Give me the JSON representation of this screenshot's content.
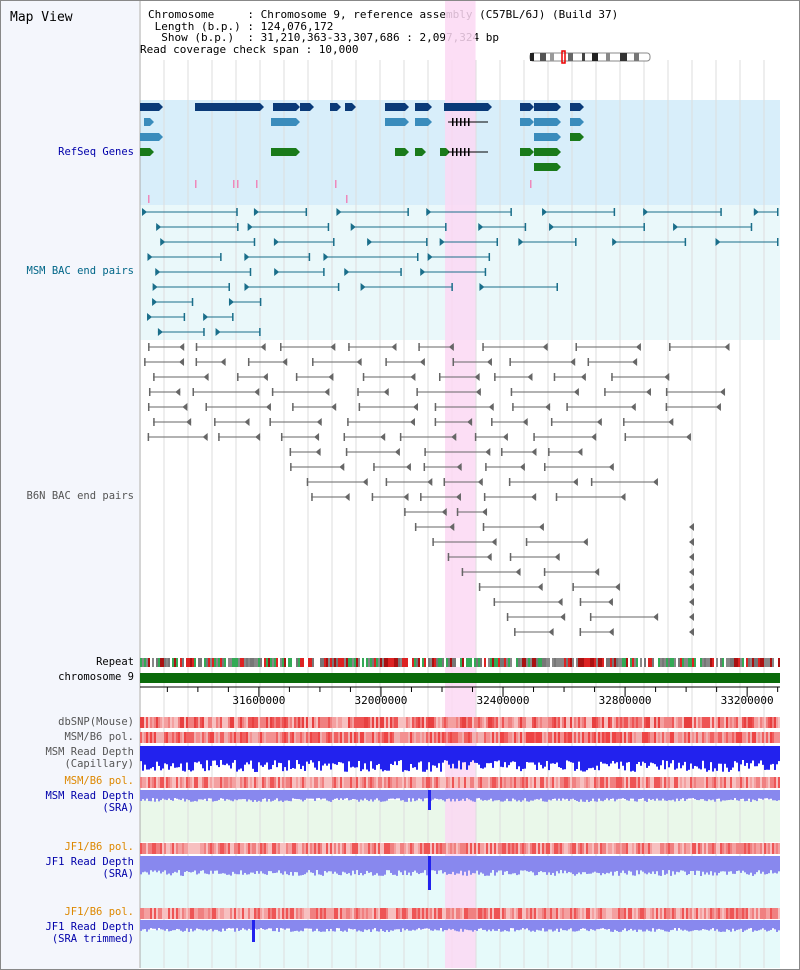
{
  "header": {
    "title": "Map View",
    "info_lines": [
      "Chromosome     : Chromosome 9, reference assembly (C57BL/6J) (Build 37)",
      " Length (b.p.) : 124,076,172",
      "  Show (b.p.)  : 31,210,363-33,307,686 : 2,097,324 bp",
      "Read coverage check span : 10,000"
    ]
  },
  "view": {
    "start": 31210363,
    "end": 33307686,
    "highlight_start": 32210000,
    "highlight_end": 32310000
  },
  "tracks": {
    "refseq": {
      "label": "RefSeq Genes",
      "color": "#0000aa"
    },
    "msm_bac": {
      "label": "MSM BAC end pairs",
      "color": "#006688"
    },
    "b6n_bac": {
      "label": "B6N BAC end pairs",
      "color": "#555555"
    },
    "repeat": {
      "label": "Repeat",
      "color": "#000000"
    },
    "chromosome": {
      "label": "chromosome 9",
      "color": "#000000"
    },
    "dbsnp": {
      "label": "dbSNP(Mouse)",
      "color": "#555555"
    },
    "msm_b6_pol": {
      "label": "MSM/B6 pol.",
      "color": "#555555"
    },
    "msm_cap": {
      "label_lines": [
        "MSM Read Depth",
        "(Capillary)"
      ],
      "color": "#555555"
    },
    "msm_b6_pol2": {
      "label": "MSM/B6 pol.",
      "color": "#dd8800"
    },
    "msm_sra": {
      "label_lines": [
        "MSM Read Depth",
        "(SRA)"
      ],
      "color": "#0000aa"
    },
    "jf1_b6_pol": {
      "label": "JF1/B6 pol.",
      "color": "#dd8800"
    },
    "jf1_sra": {
      "label_lines": [
        "JF1 Read Depth",
        "(SRA)"
      ],
      "color": "#0000aa"
    },
    "jf1_b6_pol2": {
      "label": "JF1/B6 pol.",
      "color": "#dd8800"
    },
    "jf1_trim": {
      "label_lines": [
        "JF1 Read Depth",
        "(SRA trimmed)"
      ],
      "color": "#0000aa"
    }
  },
  "axis": {
    "ticks": [
      {
        "pos": 31600000,
        "label": "31600000"
      },
      {
        "pos": 32000000,
        "label": "32000000"
      },
      {
        "pos": 32400000,
        "label": "32400000"
      },
      {
        "pos": 32800000,
        "label": "32800000"
      },
      {
        "pos": 33200000,
        "label": "33200000"
      }
    ]
  },
  "colors": {
    "refseq_bg": "#d8eefa",
    "bac_bg": "#eaf8fa",
    "highlight": "#fbd8f3",
    "gene_dark": "#0a3a78",
    "gene_mid": "#3a8cbc",
    "gene_green": "#1a7a1a",
    "msm_pair": "#1a6e8a",
    "b6n_pair": "#666666",
    "chrom_bar": "#0a6a0a",
    "depth_blue": "#2222ee",
    "depth_light": "#8888ee",
    "depth_bg_green": "#eaf8ea",
    "depth_bg_cyan": "#e6fafa"
  }
}
